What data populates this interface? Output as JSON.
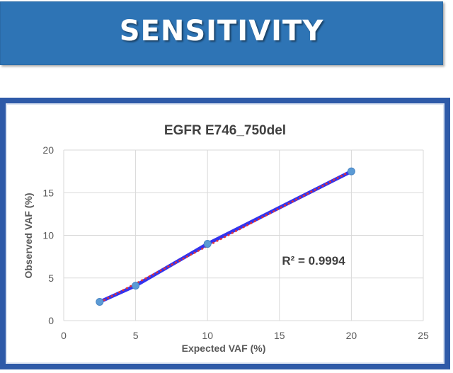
{
  "banner": {
    "title": "SENSITIVITY"
  },
  "chart_data": {
    "type": "scatter",
    "title": "EGFR E746_750del",
    "xlabel": "Expected VAF (%)",
    "ylabel": "Observed VAF (%)",
    "xlim": [
      0,
      25
    ],
    "ylim": [
      0,
      20
    ],
    "x_ticks": [
      0,
      5,
      10,
      15,
      20,
      25
    ],
    "y_ticks": [
      0,
      5,
      10,
      15,
      20
    ],
    "grid": true,
    "series": [
      {
        "points": [
          {
            "x": 2.5,
            "y": 2.2
          },
          {
            "x": 5,
            "y": 4.1
          },
          {
            "x": 10,
            "y": 9.0
          },
          {
            "x": 20,
            "y": 17.5
          }
        ],
        "line_color": "#3333ee",
        "marker_color": "#5b9bd5"
      }
    ],
    "trendline": {
      "type": "linear",
      "color": "#e0303a",
      "style": "dotted"
    },
    "annotation": "R² = 0.9994"
  }
}
